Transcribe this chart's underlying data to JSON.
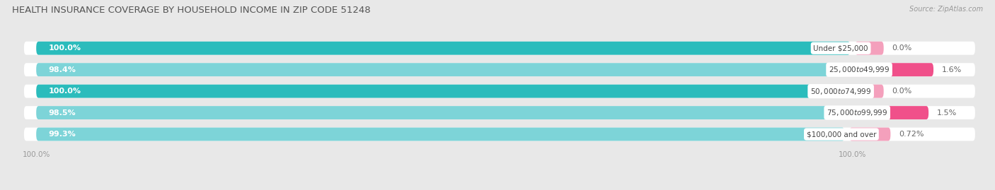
{
  "title": "HEALTH INSURANCE COVERAGE BY HOUSEHOLD INCOME IN ZIP CODE 51248",
  "source": "Source: ZipAtlas.com",
  "categories": [
    "Under $25,000",
    "$25,000 to $49,999",
    "$50,000 to $74,999",
    "$75,000 to $99,999",
    "$100,000 and over"
  ],
  "with_coverage": [
    100.0,
    98.4,
    100.0,
    98.5,
    99.3
  ],
  "without_coverage": [
    0.0,
    1.6,
    0.0,
    1.5,
    0.72
  ],
  "without_coverage_labels": [
    "0.0%",
    "1.6%",
    "0.0%",
    "1.5%",
    "0.72%"
  ],
  "with_coverage_labels": [
    "100.0%",
    "98.4%",
    "100.0%",
    "98.5%",
    "99.3%"
  ],
  "color_with_100": "#2BBCBC",
  "color_with_less": "#7DD4D8",
  "color_without_big": "#F0508A",
  "color_without_small": "#F4A0BC",
  "bg_color": "#e8e8e8",
  "bar_bg_color": "#ffffff",
  "title_fontsize": 9.5,
  "label_fontsize": 8,
  "source_fontsize": 7,
  "tick_fontsize": 7.5,
  "bar_height": 0.62
}
